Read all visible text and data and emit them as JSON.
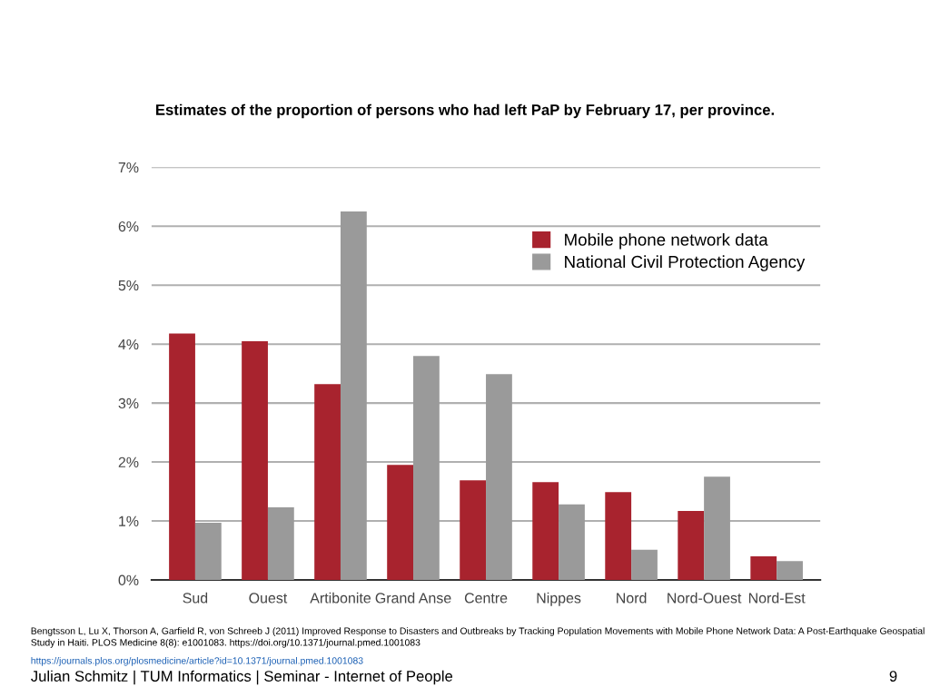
{
  "chart_data": {
    "type": "bar",
    "title": "Estimates of the proportion of persons who had left PaP by February 17, per province.",
    "categories": [
      "Sud",
      "Ouest",
      "Artibonite",
      "Grand Anse",
      "Centre",
      "Nippes",
      "Nord",
      "Nord-Ouest",
      "Nord-Est"
    ],
    "series": [
      {
        "name": "Mobile phone network data",
        "color": "#a8232e",
        "values": [
          4.18,
          4.05,
          3.32,
          1.95,
          1.69,
          1.66,
          1.49,
          1.17,
          0.4
        ]
      },
      {
        "name": "National Civil Protection Agency",
        "color": "#9a9a9a",
        "values": [
          0.97,
          1.23,
          6.25,
          3.8,
          3.49,
          1.28,
          0.51,
          1.75,
          0.32
        ]
      }
    ],
    "ylim": [
      0,
      7
    ],
    "yticks": [
      {
        "value": 0,
        "label": "0%"
      },
      {
        "value": 1,
        "label": "1%"
      },
      {
        "value": 2,
        "label": "2%"
      },
      {
        "value": 3,
        "label": "3%"
      },
      {
        "value": 4,
        "label": "4%"
      },
      {
        "value": 5,
        "label": "5%"
      },
      {
        "value": 6,
        "label": "6%"
      },
      {
        "value": 7,
        "label": "7%"
      }
    ],
    "grid": "y",
    "legend": "top right",
    "annotations": [
      "Bengtsson L, Lu X, Thorson A, Garfield R, von Schreeb J (2011) Improved Response to Disasters and Outbreaks by Tracking Population Movements with Mobile Phone Network Data: A Post-Earthquake Geospatial Study in Haiti. PLOS Medicine 8(8): e1001083. https://doi.org/10.1371/journal.pmed.1001083",
      "https://journals.plos.org/plosmedicine/article?id=10.1371/journal.pmed.1001083",
      "Julian Schmitz | TUM Informatics | Seminar - Internet of People",
      "9"
    ]
  }
}
